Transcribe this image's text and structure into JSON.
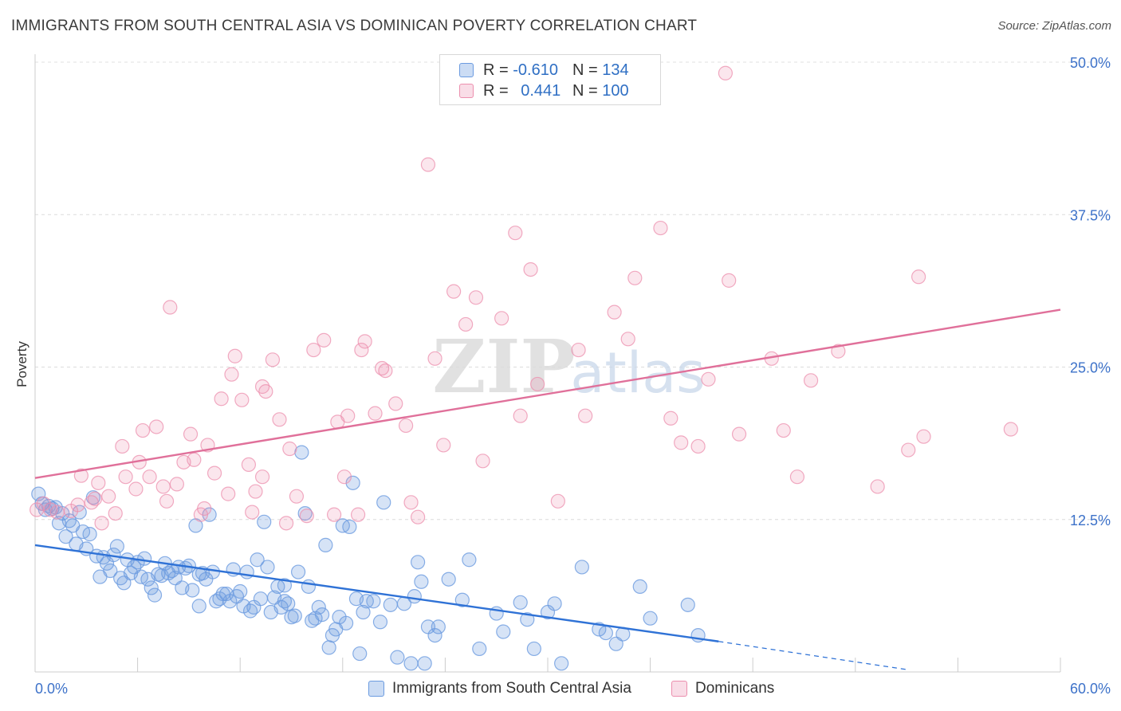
{
  "title": "IMMIGRANTS FROM SOUTH CENTRAL ASIA VS DOMINICAN POVERTY CORRELATION CHART",
  "source": "Source: ZipAtlas.com",
  "watermark": {
    "zip": "ZIP",
    "atlas": "atlas"
  },
  "legend": {
    "rows": [
      {
        "r_label": "R =",
        "r_value": "-0.610",
        "n_label": "N =",
        "n_value": "134",
        "color": "#6b9be0"
      },
      {
        "r_label": "R =",
        "r_value": "0.441",
        "n_label": "N =",
        "n_value": "100",
        "color": "#ec8fae"
      }
    ]
  },
  "bottom_legend": [
    {
      "label": "Immigrants from South Central Asia",
      "color": "#6b9be0"
    },
    {
      "label": "Dominicans",
      "color": "#ec8fae"
    }
  ],
  "chart_data": {
    "type": "scatter",
    "title": "IMMIGRANTS FROM SOUTH CENTRAL ASIA VS DOMINICAN POVERTY CORRELATION CHART",
    "xlabel": "",
    "ylabel": "Poverty",
    "xlim": [
      0,
      60
    ],
    "ylim": [
      0,
      50
    ],
    "x_tick_labels": [
      "0.0%",
      "60.0%"
    ],
    "y_ticks": [
      12.5,
      25.0,
      37.5,
      50.0
    ],
    "y_tick_labels": [
      "12.5%",
      "25.0%",
      "37.5%",
      "50.0%"
    ],
    "grid": true,
    "series": [
      {
        "name": "Immigrants from South Central Asia",
        "color": "#6b9be0",
        "points": [
          [
            0.2,
            14.6
          ],
          [
            0.4,
            13.8
          ],
          [
            0.6,
            13.3
          ],
          [
            0.8,
            13.6
          ],
          [
            1.0,
            13.4
          ],
          [
            1.2,
            13.5
          ],
          [
            1.4,
            12.2
          ],
          [
            1.6,
            13.0
          ],
          [
            1.8,
            11.1
          ],
          [
            2.0,
            12.4
          ],
          [
            2.2,
            12.0
          ],
          [
            2.4,
            10.5
          ],
          [
            2.6,
            13.1
          ],
          [
            2.8,
            11.5
          ],
          [
            3.0,
            10.1
          ],
          [
            3.2,
            11.3
          ],
          [
            3.4,
            14.3
          ],
          [
            3.6,
            9.5
          ],
          [
            3.8,
            7.8
          ],
          [
            4.0,
            9.4
          ],
          [
            4.2,
            8.9
          ],
          [
            4.4,
            8.3
          ],
          [
            4.6,
            9.6
          ],
          [
            4.8,
            10.3
          ],
          [
            5.0,
            7.7
          ],
          [
            5.2,
            7.3
          ],
          [
            5.4,
            9.2
          ],
          [
            5.6,
            8.1
          ],
          [
            5.8,
            8.6
          ],
          [
            6.0,
            9.0
          ],
          [
            6.2,
            7.8
          ],
          [
            6.4,
            9.3
          ],
          [
            6.6,
            7.6
          ],
          [
            6.8,
            6.9
          ],
          [
            7.0,
            6.3
          ],
          [
            7.2,
            8.0
          ],
          [
            7.4,
            7.9
          ],
          [
            7.6,
            8.9
          ],
          [
            7.8,
            8.1
          ],
          [
            8.0,
            8.3
          ],
          [
            8.2,
            7.7
          ],
          [
            8.4,
            8.6
          ],
          [
            8.6,
            6.9
          ],
          [
            8.8,
            8.5
          ],
          [
            9.0,
            8.7
          ],
          [
            9.2,
            6.7
          ],
          [
            9.4,
            12.0
          ],
          [
            9.6,
            5.4
          ],
          [
            9.8,
            8.1
          ],
          [
            10.0,
            7.6
          ],
          [
            10.2,
            12.9
          ],
          [
            10.4,
            8.2
          ],
          [
            10.6,
            5.8
          ],
          [
            10.8,
            6.0
          ],
          [
            11.0,
            6.4
          ],
          [
            11.2,
            6.4
          ],
          [
            11.4,
            5.8
          ],
          [
            11.6,
            8.4
          ],
          [
            11.8,
            6.2
          ],
          [
            12.0,
            6.6
          ],
          [
            12.2,
            5.4
          ],
          [
            12.4,
            8.2
          ],
          [
            12.6,
            5.0
          ],
          [
            12.8,
            5.3
          ],
          [
            13.0,
            9.2
          ],
          [
            13.2,
            6.0
          ],
          [
            13.4,
            12.3
          ],
          [
            13.6,
            8.6
          ],
          [
            13.8,
            4.9
          ],
          [
            14.0,
            6.1
          ],
          [
            14.2,
            7.0
          ],
          [
            14.4,
            5.3
          ],
          [
            14.6,
            7.1
          ],
          [
            14.8,
            5.6
          ],
          [
            15.0,
            4.5
          ],
          [
            15.2,
            4.6
          ],
          [
            15.4,
            8.2
          ],
          [
            15.6,
            18.0
          ],
          [
            15.8,
            13.0
          ],
          [
            16.0,
            7.0
          ],
          [
            16.2,
            4.2
          ],
          [
            16.4,
            4.4
          ],
          [
            16.6,
            5.3
          ],
          [
            16.8,
            4.7
          ],
          [
            17.0,
            10.4
          ],
          [
            17.2,
            2.0
          ],
          [
            17.4,
            3.0
          ],
          [
            17.6,
            3.5
          ],
          [
            17.8,
            4.5
          ],
          [
            18.0,
            12.0
          ],
          [
            18.2,
            4.0
          ],
          [
            18.4,
            11.9
          ],
          [
            18.6,
            15.5
          ],
          [
            18.8,
            6.0
          ],
          [
            19.0,
            1.5
          ],
          [
            19.2,
            4.9
          ],
          [
            19.4,
            5.8
          ],
          [
            19.8,
            5.8
          ],
          [
            20.2,
            4.1
          ],
          [
            20.4,
            13.9
          ],
          [
            20.8,
            5.5
          ],
          [
            21.2,
            1.2
          ],
          [
            21.6,
            5.6
          ],
          [
            22.0,
            0.7
          ],
          [
            22.2,
            6.2
          ],
          [
            22.4,
            9.0
          ],
          [
            22.8,
            0.7
          ],
          [
            23.0,
            3.7
          ],
          [
            23.4,
            3.0
          ],
          [
            23.6,
            3.7
          ],
          [
            24.2,
            7.6
          ],
          [
            25.0,
            5.9
          ],
          [
            25.4,
            9.2
          ],
          [
            26.0,
            1.9
          ],
          [
            27.0,
            4.8
          ],
          [
            27.4,
            3.3
          ],
          [
            28.4,
            5.7
          ],
          [
            28.8,
            4.3
          ],
          [
            29.2,
            1.9
          ],
          [
            30.0,
            4.9
          ],
          [
            30.4,
            5.6
          ],
          [
            30.8,
            0.7
          ],
          [
            32.0,
            8.6
          ],
          [
            33.0,
            3.5
          ],
          [
            33.4,
            3.2
          ],
          [
            34.0,
            2.3
          ],
          [
            34.4,
            3.1
          ],
          [
            35.4,
            7.0
          ],
          [
            36.0,
            4.4
          ],
          [
            38.2,
            5.5
          ],
          [
            38.8,
            3.0
          ],
          [
            22.6,
            7.4
          ],
          [
            9.6,
            8.0
          ],
          [
            14.6,
            5.8
          ]
        ],
        "trend_solid": [
          [
            0,
            10.4
          ],
          [
            40,
            2.5
          ]
        ],
        "trend_dashed": [
          [
            40,
            2.5
          ],
          [
            51,
            0.2
          ]
        ]
      },
      {
        "name": "Dominicans",
        "color": "#ec8fae",
        "points": [
          [
            0.1,
            13.3
          ],
          [
            0.5,
            13.8
          ],
          [
            0.9,
            13.3
          ],
          [
            1.3,
            13.1
          ],
          [
            2.1,
            13.2
          ],
          [
            2.5,
            13.7
          ],
          [
            2.7,
            16.1
          ],
          [
            3.3,
            13.9
          ],
          [
            3.5,
            14.2
          ],
          [
            3.7,
            15.5
          ],
          [
            3.9,
            12.2
          ],
          [
            4.3,
            14.4
          ],
          [
            4.7,
            13.0
          ],
          [
            5.1,
            18.5
          ],
          [
            5.3,
            16.0
          ],
          [
            5.9,
            15.0
          ],
          [
            6.1,
            17.2
          ],
          [
            6.3,
            19.8
          ],
          [
            6.7,
            16.0
          ],
          [
            7.1,
            20.1
          ],
          [
            7.5,
            15.2
          ],
          [
            7.7,
            14.0
          ],
          [
            7.9,
            29.9
          ],
          [
            8.3,
            15.4
          ],
          [
            8.7,
            17.2
          ],
          [
            9.1,
            19.5
          ],
          [
            9.3,
            17.4
          ],
          [
            9.7,
            12.9
          ],
          [
            9.9,
            13.4
          ],
          [
            10.1,
            18.6
          ],
          [
            10.5,
            16.3
          ],
          [
            10.9,
            22.4
          ],
          [
            11.3,
            14.6
          ],
          [
            11.5,
            24.4
          ],
          [
            11.7,
            25.9
          ],
          [
            12.1,
            22.3
          ],
          [
            12.5,
            17.0
          ],
          [
            12.7,
            13.1
          ],
          [
            12.9,
            14.8
          ],
          [
            13.3,
            16.0
          ],
          [
            13.5,
            23.0
          ],
          [
            13.9,
            25.6
          ],
          [
            14.3,
            20.7
          ],
          [
            14.7,
            12.2
          ],
          [
            14.9,
            18.3
          ],
          [
            15.3,
            14.4
          ],
          [
            16.3,
            26.4
          ],
          [
            16.9,
            27.2
          ],
          [
            17.5,
            12.9
          ],
          [
            17.7,
            20.5
          ],
          [
            18.1,
            16.0
          ],
          [
            18.3,
            21.0
          ],
          [
            18.9,
            12.9
          ],
          [
            19.1,
            26.4
          ],
          [
            19.3,
            27.1
          ],
          [
            19.9,
            21.2
          ],
          [
            20.3,
            24.9
          ],
          [
            20.5,
            24.7
          ],
          [
            21.1,
            22.0
          ],
          [
            21.7,
            20.2
          ],
          [
            22.0,
            13.9
          ],
          [
            22.4,
            12.7
          ],
          [
            23.0,
            41.6
          ],
          [
            23.4,
            25.7
          ],
          [
            23.9,
            18.6
          ],
          [
            24.5,
            31.2
          ],
          [
            25.2,
            28.5
          ],
          [
            25.8,
            30.7
          ],
          [
            26.2,
            17.3
          ],
          [
            27.3,
            29.0
          ],
          [
            28.1,
            36.0
          ],
          [
            28.4,
            21.0
          ],
          [
            29.0,
            33.0
          ],
          [
            29.4,
            23.6
          ],
          [
            30.6,
            14.0
          ],
          [
            31.8,
            26.4
          ],
          [
            32.2,
            21.0
          ],
          [
            33.9,
            29.5
          ],
          [
            34.7,
            27.3
          ],
          [
            35.1,
            32.3
          ],
          [
            36.6,
            36.4
          ],
          [
            37.2,
            20.8
          ],
          [
            37.8,
            18.8
          ],
          [
            38.8,
            18.5
          ],
          [
            39.4,
            24.0
          ],
          [
            40.4,
            49.1
          ],
          [
            40.6,
            32.1
          ],
          [
            41.2,
            19.5
          ],
          [
            43.1,
            25.7
          ],
          [
            43.8,
            19.8
          ],
          [
            44.6,
            16.0
          ],
          [
            45.4,
            23.9
          ],
          [
            47.0,
            26.3
          ],
          [
            49.3,
            15.2
          ],
          [
            51.1,
            18.2
          ],
          [
            51.7,
            32.4
          ],
          [
            52.0,
            19.3
          ],
          [
            57.1,
            19.9
          ],
          [
            13.3,
            23.4
          ],
          [
            15.9,
            12.8
          ]
        ],
        "trend_solid": [
          [
            0,
            15.9
          ],
          [
            60,
            29.7
          ]
        ]
      }
    ]
  }
}
